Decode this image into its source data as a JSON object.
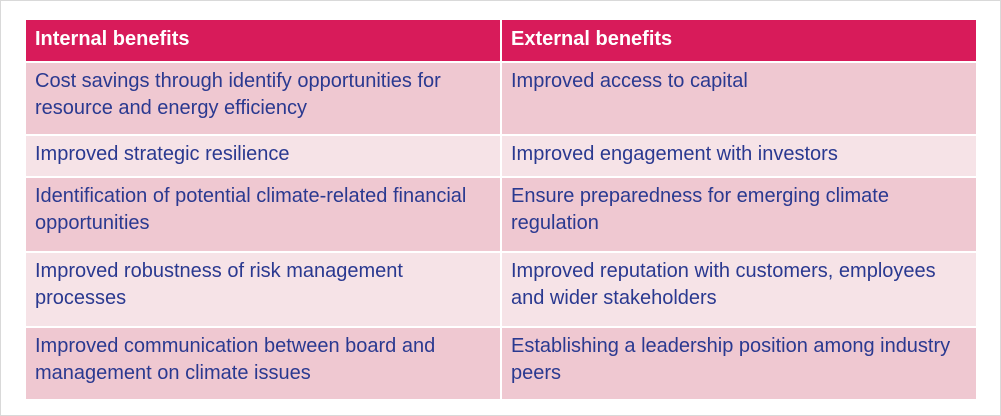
{
  "table": {
    "header": [
      "Internal benefits",
      "External benefits"
    ],
    "rows": [
      [
        "Cost savings through identify opportunities for resource and energy efficiency",
        "Improved access to capital"
      ],
      [
        "Improved strategic resilience",
        "Improved engagement with investors"
      ],
      [
        "Identification of potential climate-related financial opportunities",
        "Ensure preparedness for emerging climate regulation"
      ],
      [
        "Improved robustness of risk management processes",
        "Improved reputation with customers, employees and wider stakeholders"
      ],
      [
        "Improved communication between board and management on climate issues",
        "Establishing a leadership position among industry peers"
      ]
    ]
  }
}
